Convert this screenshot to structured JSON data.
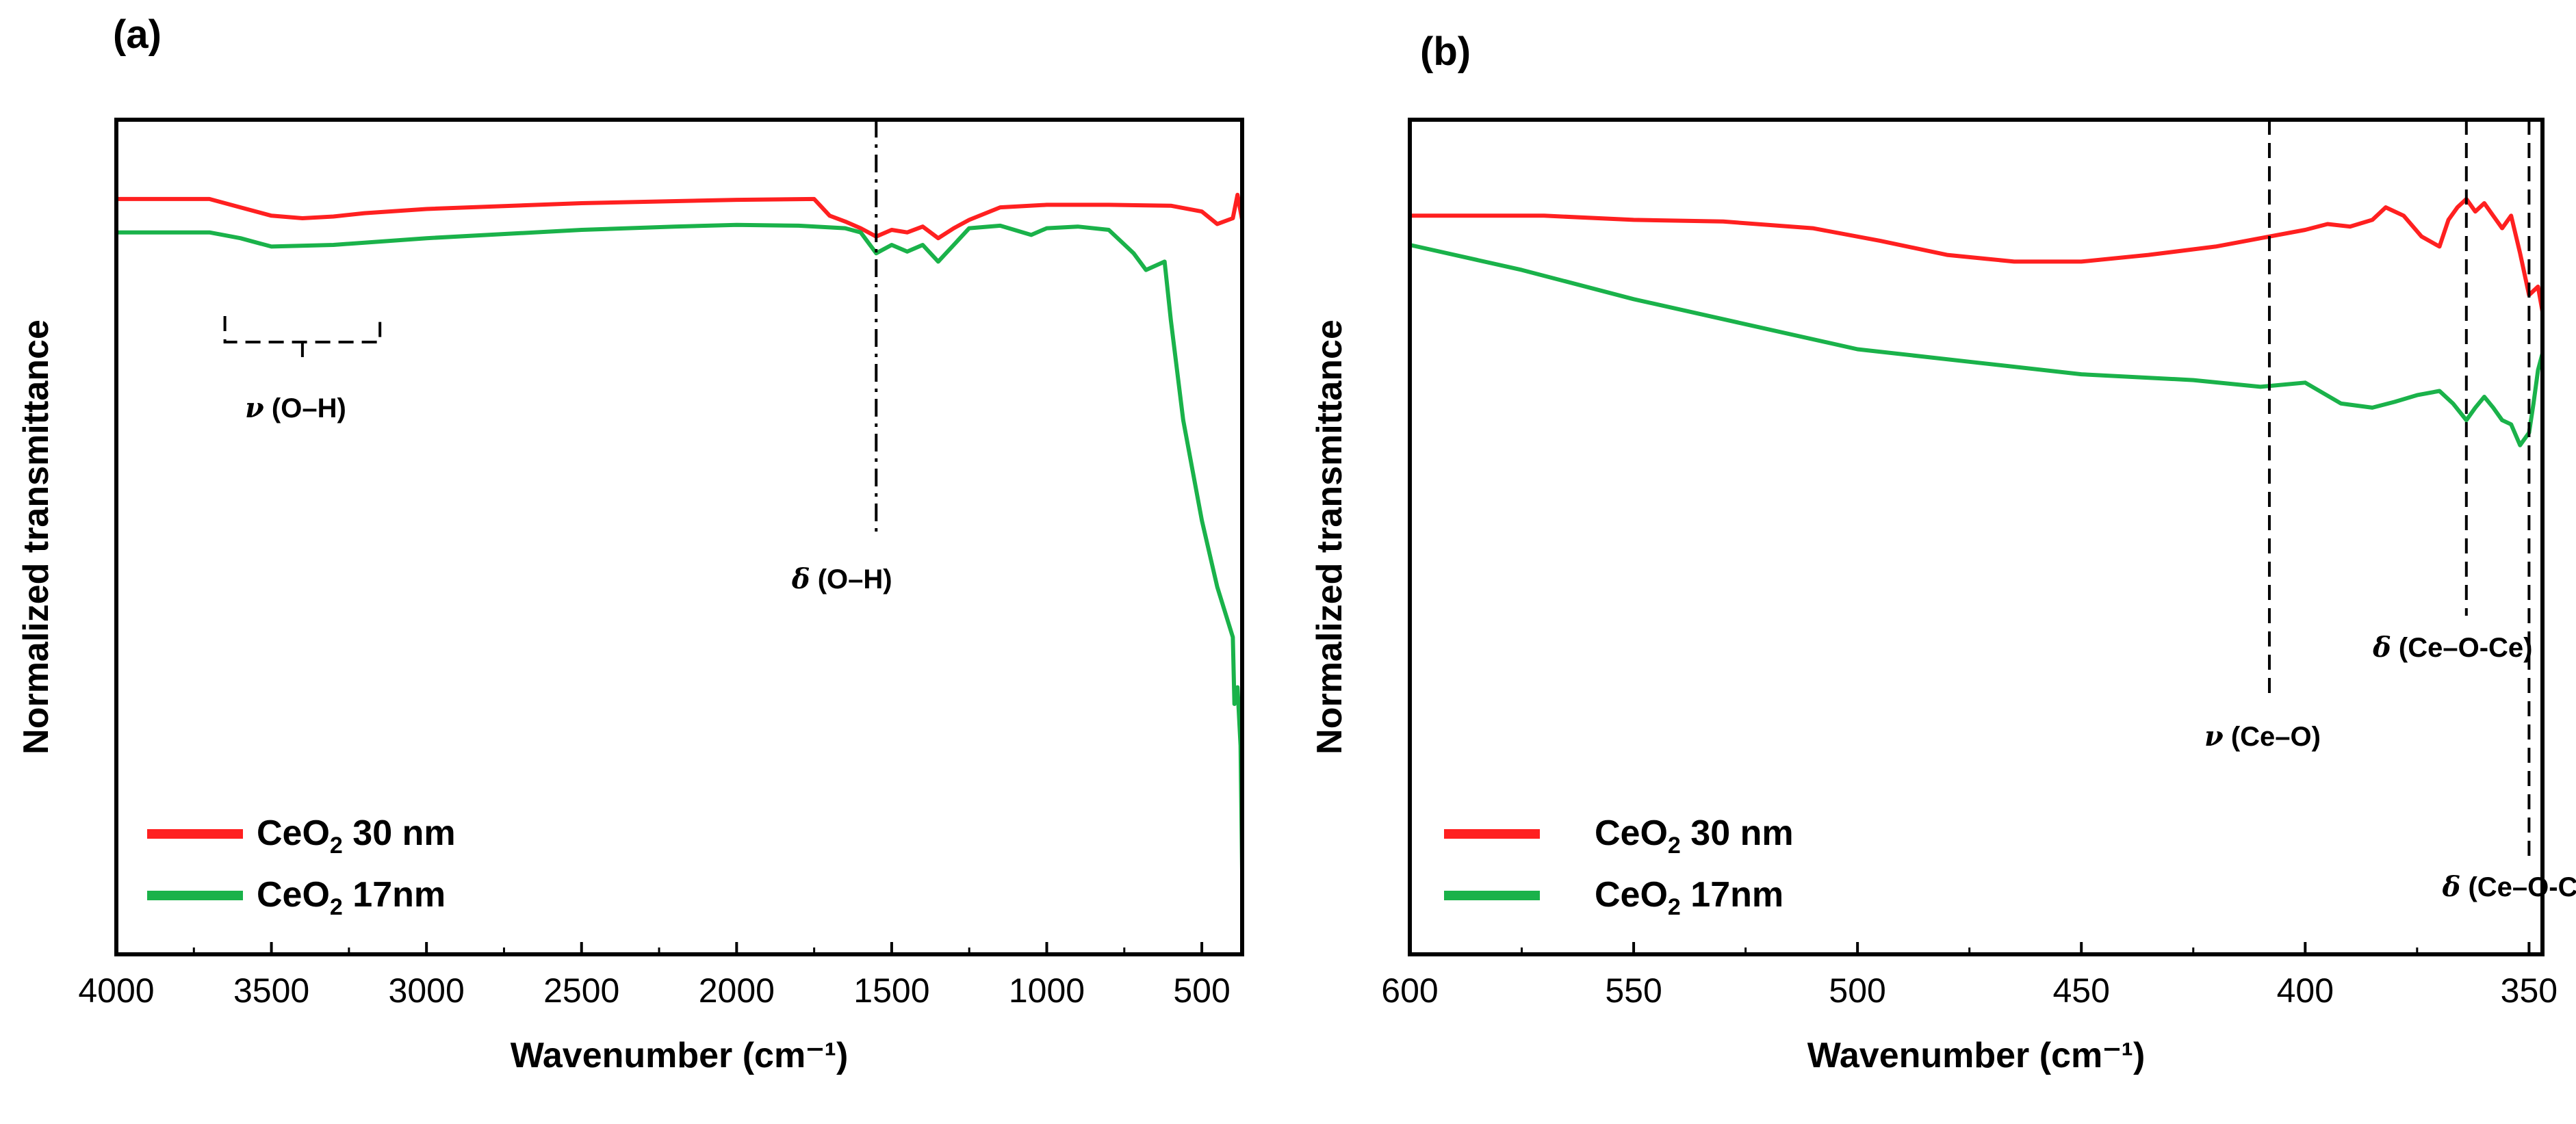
{
  "colors": {
    "red_series": "#ff2020",
    "green_series": "#1ab24a",
    "axis": "#000000"
  },
  "chart_data": [
    {
      "panel_label": "(a)",
      "type": "line",
      "xlabel": "Wavenumber (cm⁻¹)",
      "ylabel": "Normalized transmittance",
      "xlim": [
        4000,
        370
      ],
      "ylim": [
        0,
        1
      ],
      "y_ticks_shown": false,
      "xticks": [
        4000,
        3500,
        3000,
        2500,
        2000,
        1500,
        1000,
        500
      ],
      "xtick_labels": [
        "4000",
        "3500",
        "3000",
        "2500",
        "2000",
        "1500",
        "1000",
        "500"
      ],
      "legend": {
        "position": "bottom-left",
        "entries": [
          {
            "name": "CeO₂ 30 nm",
            "text": "CeO",
            "sub": "2",
            "suffix": " 30 nm",
            "color": "red_series"
          },
          {
            "name": "CeO₂ 17nm",
            "text": "CeO",
            "sub": "2",
            "suffix": " 17nm",
            "color": "green_series"
          }
        ]
      },
      "series": [
        {
          "name": "CeO₂ 30 nm",
          "color": "red_series",
          "x": [
            4000,
            3700,
            3600,
            3500,
            3400,
            3300,
            3200,
            3000,
            2500,
            2000,
            1750,
            1700,
            1650,
            1600,
            1550,
            1500,
            1450,
            1400,
            1350,
            1300,
            1250,
            1150,
            1000,
            800,
            600,
            500,
            450,
            400,
            385,
            370
          ],
          "y": [
            0.905,
            0.905,
            0.895,
            0.885,
            0.882,
            0.884,
            0.888,
            0.893,
            0.9,
            0.904,
            0.905,
            0.885,
            0.878,
            0.87,
            0.86,
            0.868,
            0.865,
            0.872,
            0.858,
            0.87,
            0.88,
            0.895,
            0.898,
            0.898,
            0.897,
            0.89,
            0.875,
            0.882,
            0.91,
            0.88
          ]
        },
        {
          "name": "CeO₂ 17nm",
          "color": "green_series",
          "x": [
            4000,
            3700,
            3600,
            3500,
            3300,
            3000,
            2500,
            2200,
            2000,
            1800,
            1650,
            1600,
            1550,
            1500,
            1450,
            1400,
            1350,
            1300,
            1250,
            1150,
            1050,
            1000,
            900,
            800,
            720,
            680,
            620,
            600,
            560,
            500,
            450,
            400,
            395,
            385,
            375,
            370
          ],
          "y": [
            0.865,
            0.865,
            0.858,
            0.848,
            0.85,
            0.858,
            0.868,
            0.872,
            0.874,
            0.873,
            0.87,
            0.865,
            0.84,
            0.85,
            0.842,
            0.85,
            0.83,
            0.85,
            0.87,
            0.873,
            0.862,
            0.87,
            0.872,
            0.868,
            0.84,
            0.82,
            0.83,
            0.76,
            0.64,
            0.52,
            0.44,
            0.38,
            0.3,
            0.32,
            0.25,
            0.1
          ]
        }
      ],
      "annotations": [
        {
          "label_prefix": "ν",
          "label": " (O–H)",
          "kind": "bracket",
          "x_start": 3650,
          "x_end": 3150
        },
        {
          "label_prefix": "δ",
          "label": " (O–H)",
          "kind": "vline-dashdot",
          "x": 1550
        }
      ]
    },
    {
      "panel_label": "(b)",
      "type": "line",
      "xlabel": "Wavenumber (cm⁻¹)",
      "ylabel": "Normalized transmittance",
      "xlim": [
        600,
        347
      ],
      "ylim": [
        0,
        1
      ],
      "y_ticks_shown": false,
      "xticks": [
        600,
        550,
        500,
        450,
        400,
        350
      ],
      "xtick_labels": [
        "600",
        "550",
        "500",
        "450",
        "400",
        "350"
      ],
      "legend": {
        "position": "bottom-left",
        "entries": [
          {
            "name": "CeO₂ 30 nm",
            "text": "CeO",
            "sub": "2",
            "suffix": " 30 nm",
            "color": "red_series"
          },
          {
            "name": "CeO₂ 17nm",
            "text": "CeO",
            "sub": "2",
            "suffix": " 17nm",
            "color": "green_series"
          }
        ]
      },
      "series": [
        {
          "name": "CeO₂ 30 nm",
          "color": "red_series",
          "x": [
            600,
            570,
            550,
            530,
            510,
            495,
            480,
            465,
            450,
            435,
            420,
            410,
            400,
            395,
            390,
            385,
            382,
            378,
            374,
            370,
            368,
            366,
            364,
            362,
            360,
            358,
            356,
            354,
            352,
            350,
            348,
            347
          ],
          "y": [
            0.885,
            0.885,
            0.88,
            0.878,
            0.87,
            0.855,
            0.838,
            0.83,
            0.83,
            0.838,
            0.848,
            0.858,
            0.868,
            0.875,
            0.872,
            0.88,
            0.895,
            0.885,
            0.86,
            0.848,
            0.88,
            0.895,
            0.905,
            0.89,
            0.9,
            0.885,
            0.87,
            0.885,
            0.84,
            0.79,
            0.8,
            0.77
          ]
        },
        {
          "name": "CeO₂ 17nm",
          "color": "green_series",
          "x": [
            600,
            575,
            550,
            525,
            500,
            475,
            450,
            425,
            410,
            400,
            392,
            385,
            380,
            375,
            370,
            367,
            364,
            362,
            360,
            358,
            356,
            354,
            352,
            350,
            349,
            348,
            347
          ],
          "y": [
            0.85,
            0.82,
            0.785,
            0.755,
            0.725,
            0.71,
            0.695,
            0.688,
            0.68,
            0.685,
            0.66,
            0.655,
            0.662,
            0.67,
            0.675,
            0.66,
            0.64,
            0.655,
            0.668,
            0.655,
            0.64,
            0.635,
            0.61,
            0.625,
            0.66,
            0.7,
            0.72
          ]
        }
      ],
      "annotations": [
        {
          "label_prefix": "ν",
          "label": " (Ce–O)",
          "kind": "vline-dashed",
          "x": 408
        },
        {
          "label_prefix": "δ",
          "label": " (Ce–O-Ce)",
          "kind": "vline-dashed",
          "x": 364
        },
        {
          "label_prefix": "δ",
          "label": " (Ce–O-Ce)",
          "kind": "vline-dashed",
          "x": 350
        }
      ]
    }
  ]
}
